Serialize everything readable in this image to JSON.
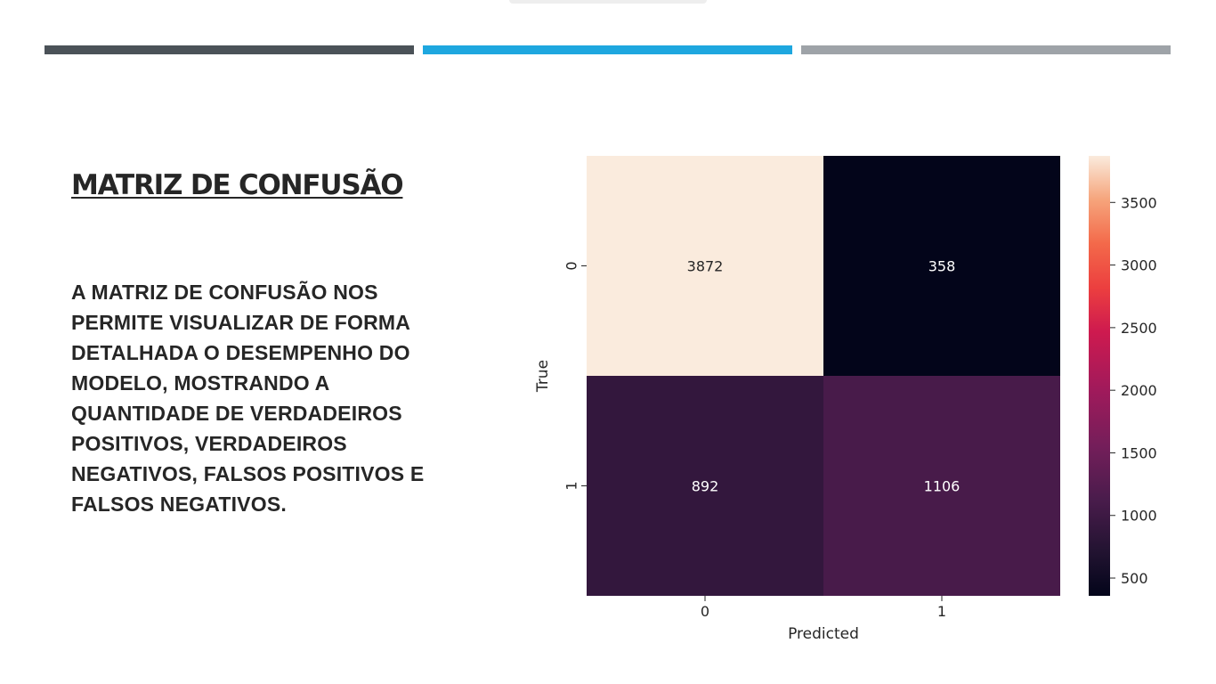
{
  "slide": {
    "title": "MATRIZ DE CONFUSÃO",
    "body": "A MATRIZ DE CONFUSÃO NOS PERMITE VISUALIZAR DE FORMA DETALHADA O DESEMPENHO DO MODELO, MOSTRANDO A QUANTIDADE DE VERDADEIROS POSITIVOS, VERDADEIROS NEGATIVOS, FALSOS POSITIVOS E FALSOS NEGATIVOS."
  },
  "colors": {
    "bar_dark": "#4b5258",
    "bar_blue": "#1ea7df",
    "bar_gray": "#9ea3a8"
  },
  "chart_data": {
    "type": "heatmap",
    "xlabel": "Predicted",
    "ylabel": "True",
    "x_categories": [
      "0",
      "1"
    ],
    "y_categories": [
      "0",
      "1"
    ],
    "values": [
      [
        3872,
        358
      ],
      [
        892,
        1106
      ]
    ],
    "colorbar": {
      "colormap": "rocket",
      "min": 358,
      "max": 3872,
      "ticks": [
        500,
        1000,
        1500,
        2000,
        2500,
        3000,
        3500
      ]
    },
    "grid": false
  }
}
